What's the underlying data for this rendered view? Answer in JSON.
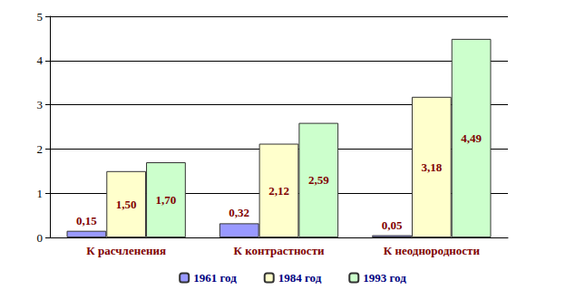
{
  "chart_data": {
    "type": "bar",
    "categories": [
      "К расчленения",
      "К контрастности",
      "К неоднородности"
    ],
    "series": [
      {
        "name": "1961 год",
        "color": "#9999ff",
        "values": [
          0.15,
          0.32,
          0.05
        ],
        "value_labels": [
          "0,15",
          "0,32",
          "0,05"
        ]
      },
      {
        "name": "1984 год",
        "color": "#ffffcc",
        "values": [
          1.5,
          2.12,
          3.18
        ],
        "value_labels": [
          "1,50",
          "2,12",
          "3,18"
        ]
      },
      {
        "name": "1993 год",
        "color": "#ccffcc",
        "values": [
          1.7,
          2.59,
          4.49
        ],
        "value_labels": [
          "1,70",
          "2,59",
          "4,49"
        ]
      }
    ],
    "ylim": [
      0,
      5
    ],
    "yticks": [
      0,
      1,
      2,
      3,
      4,
      5
    ],
    "grid": true,
    "legend": "bottom",
    "data_labels": true
  }
}
